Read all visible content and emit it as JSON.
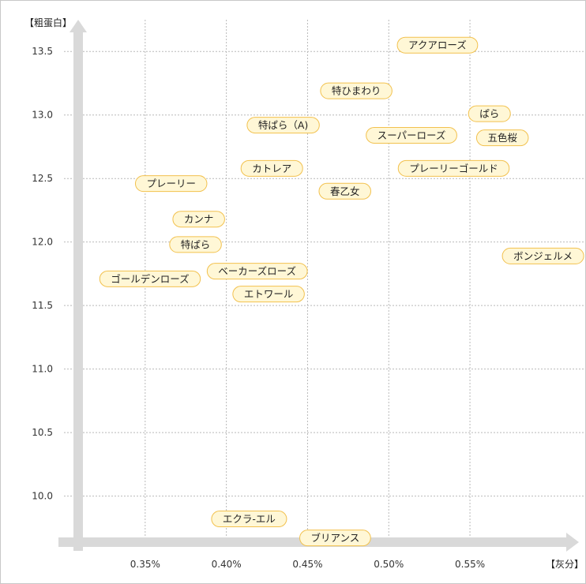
{
  "chart_data": {
    "type": "scatter",
    "xlabel": "【灰分】",
    "ylabel": "【粗蛋白】",
    "x_ticks": [
      "0.35%",
      "0.40%",
      "0.45%",
      "0.50%",
      "0.55%"
    ],
    "x_tick_values": [
      0.35,
      0.4,
      0.45,
      0.5,
      0.55
    ],
    "y_ticks": [
      "10.0",
      "10.5",
      "11.0",
      "11.5",
      "12.0",
      "12.5",
      "13.0",
      "13.5"
    ],
    "y_tick_values": [
      10.0,
      10.5,
      11.0,
      11.5,
      12.0,
      12.5,
      13.0,
      13.5
    ],
    "xlim": [
      0.3,
      0.62
    ],
    "ylim": [
      9.55,
      13.75
    ],
    "grid": true,
    "legend": "none",
    "points": [
      {
        "label": "アクアローズ",
        "x": 0.53,
        "y": 13.55
      },
      {
        "label": "特ひまわり",
        "x": 0.48,
        "y": 13.19
      },
      {
        "label": "ぱら",
        "x": 0.562,
        "y": 13.01
      },
      {
        "label": "特ぱら（A)",
        "x": 0.435,
        "y": 12.92
      },
      {
        "label": "スーパーローズ",
        "x": 0.514,
        "y": 12.84
      },
      {
        "label": "五色桜",
        "x": 0.57,
        "y": 12.82
      },
      {
        "label": "カトレア",
        "x": 0.428,
        "y": 12.58
      },
      {
        "label": "プレーリーゴールド",
        "x": 0.54,
        "y": 12.58
      },
      {
        "label": "プレーリー",
        "x": 0.366,
        "y": 12.46
      },
      {
        "label": "春乙女",
        "x": 0.473,
        "y": 12.4
      },
      {
        "label": "カンナ",
        "x": 0.383,
        "y": 12.18
      },
      {
        "label": "特ぱら",
        "x": 0.381,
        "y": 11.98
      },
      {
        "label": "ボンジェルメ",
        "x": 0.595,
        "y": 11.89
      },
      {
        "label": "ベーカーズローズ",
        "x": 0.419,
        "y": 11.77
      },
      {
        "label": "ゴールデンローズ",
        "x": 0.353,
        "y": 11.71
      },
      {
        "label": "エトワール",
        "x": 0.426,
        "y": 11.59
      },
      {
        "label": "エクラ-エル",
        "x": 0.414,
        "y": 9.82
      },
      {
        "label": "ブリアンス",
        "x": 0.467,
        "y": 9.67
      }
    ]
  },
  "colors": {
    "label_fill": "#fff7d6",
    "label_stroke": "#f2c14e",
    "axis_arrow": "#d9d9d9",
    "grid": "#b9b9b9"
  }
}
